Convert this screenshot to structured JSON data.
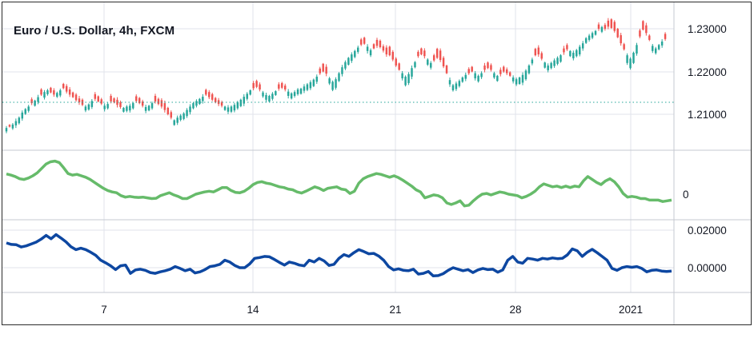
{
  "header": {
    "title": "Euro / U.S. Dollar, 4h, FXCM"
  },
  "colors": {
    "up": "#26a69a",
    "down": "#ef5350",
    "oscillator_line": "#66bb6a",
    "momentum_line": "#0d47a1",
    "grid": "#e0e3eb",
    "last_price_line": "#26a69a"
  },
  "chart_data": [
    {
      "type": "candlestick",
      "title": "Euro / U.S. Dollar, 4h, FXCM",
      "y_ticks": [
        "1.23000",
        "1.22000",
        "1.21000"
      ],
      "ylim": [
        1.202,
        1.233
      ],
      "x_ticks": [
        "7",
        "14",
        "21",
        "28",
        "2021"
      ],
      "reference_level": 1.2128,
      "close": [
        1.2068,
        1.2071,
        1.2076,
        1.2084,
        1.2092,
        1.2104,
        1.2112,
        1.2118,
        1.2126,
        1.2132,
        1.214,
        1.2146,
        1.2152,
        1.2156,
        1.2151,
        1.2146,
        1.215,
        1.2156,
        1.2161,
        1.2153,
        1.2146,
        1.214,
        1.2133,
        1.2128,
        1.2122,
        1.2118,
        1.2123,
        1.2131,
        1.2136,
        1.213,
        1.2125,
        1.212,
        1.2124,
        1.213,
        1.2128,
        1.2122,
        1.2117,
        1.2115,
        1.2118,
        1.212,
        1.2126,
        1.2131,
        1.2126,
        1.212,
        1.2117,
        1.212,
        1.2126,
        1.213,
        1.2124,
        1.2118,
        1.211,
        1.21,
        1.2092,
        1.2086,
        1.2092,
        1.2097,
        1.2102,
        1.211,
        1.2118,
        1.2126,
        1.2131,
        1.2136,
        1.2141,
        1.2146,
        1.214,
        1.2134,
        1.2128,
        1.2124,
        1.212,
        1.2118,
        1.2116,
        1.2118,
        1.2122,
        1.2128,
        1.2134,
        1.2141,
        1.2148,
        1.2156,
        1.2161,
        1.2164,
        1.2158,
        1.2151,
        1.2145,
        1.2143,
        1.2148,
        1.2154,
        1.216,
        1.2162,
        1.2158,
        1.2153,
        1.2149,
        1.2152,
        1.2158,
        1.216,
        1.2165,
        1.217,
        1.2175,
        1.2181,
        1.2188,
        1.2196,
        1.22,
        1.2195,
        1.2184,
        1.2176,
        1.2182,
        1.2196,
        1.221,
        1.2222,
        1.2232,
        1.224,
        1.2248,
        1.2256,
        1.2263,
        1.2265,
        1.2258,
        1.225,
        1.2254,
        1.226,
        1.2257,
        1.2249,
        1.224,
        1.2238,
        1.2228,
        1.2214,
        1.2204,
        1.2196,
        1.2188,
        1.2194,
        1.2208,
        1.2222,
        1.2236,
        1.224,
        1.2236,
        1.2228,
        1.222,
        1.2226,
        1.2232,
        1.2227,
        1.2212,
        1.2196,
        1.218,
        1.2168,
        1.2172,
        1.2178,
        1.2186,
        1.2192,
        1.2196,
        1.22,
        1.2196,
        1.219,
        1.2196,
        1.2204,
        1.2208,
        1.2204,
        1.2196,
        1.219,
        1.2194,
        1.22,
        1.2196,
        1.219,
        1.2186,
        1.2182,
        1.2186,
        1.2192,
        1.2202,
        1.2214,
        1.2228,
        1.2238,
        1.224,
        1.223,
        1.2221,
        1.2214,
        1.222,
        1.2226,
        1.2232,
        1.2238,
        1.2245,
        1.2252,
        1.2248,
        1.2244,
        1.225,
        1.2258,
        1.2266,
        1.2278,
        1.2284,
        1.229,
        1.2295,
        1.23,
        1.2304,
        1.23,
        1.2305,
        1.2302,
        1.2295,
        1.228,
        1.2266,
        1.2252,
        1.2238,
        1.223,
        1.2244,
        1.2262,
        1.2282,
        1.2298,
        1.229,
        1.2274,
        1.226,
        1.2254,
        1.2262,
        1.227,
        1.2276,
        1.228,
        1.227
      ],
      "delta": [
        0.0008,
        -0.0004,
        0.0009,
        0.001,
        0.0013,
        0.0014,
        0.0011,
        0.001,
        -0.0009,
        0.0012,
        0.0011,
        -0.0012,
        0.0013,
        0.0009,
        -0.0011,
        -0.001,
        0.0009,
        0.0012,
        -0.001,
        -0.0013,
        -0.0012,
        -0.0011,
        -0.0013,
        -0.0009,
        -0.0012,
        0.0009,
        0.0012,
        0.0014,
        -0.0011,
        -0.0012,
        -0.001,
        0.0008,
        0.001,
        -0.0013,
        -0.0009,
        -0.0012,
        -0.0011,
        0.0009,
        0.001,
        0.0011,
        0.0012,
        -0.0011,
        -0.0012,
        -0.001,
        0.0009,
        0.0011,
        0.0012,
        -0.0013,
        -0.0012,
        -0.0015,
        -0.0016,
        -0.0015,
        -0.0013,
        0.0011,
        0.0012,
        0.001,
        0.0013,
        0.0014,
        0.0013,
        0.0012,
        0.0011,
        0.0012,
        0.001,
        -0.0011,
        -0.0012,
        -0.0013,
        -0.001,
        -0.0009,
        -0.0008,
        0.0008,
        0.001,
        0.0012,
        0.0013,
        0.0014,
        0.0015,
        0.0016,
        0.0012,
        0.001,
        -0.0012,
        -0.0014,
        -0.0012,
        0.0009,
        0.0011,
        0.0013,
        0.0012,
        0.0009,
        -0.001,
        -0.0011,
        -0.0009,
        0.001,
        0.0012,
        0.0009,
        0.0011,
        0.0012,
        0.001,
        0.0013,
        0.0014,
        0.0015,
        0.0012,
        -0.0011,
        -0.0018,
        -0.0016,
        0.0012,
        0.0019,
        0.002,
        0.0018,
        0.0016,
        0.0015,
        0.0016,
        0.0015,
        0.0014,
        0.001,
        -0.0012,
        -0.0014,
        0.001,
        0.0012,
        -0.001,
        -0.0014,
        -0.0015,
        -0.001,
        -0.0016,
        -0.002,
        -0.0018,
        -0.0016,
        -0.0015,
        0.0012,
        0.002,
        0.0021,
        0.002,
        0.0012,
        -0.001,
        -0.0014,
        -0.0013,
        0.0012,
        0.0011,
        -0.0012,
        -0.0021,
        -0.0022,
        -0.002,
        -0.0018,
        0.001,
        0.0012,
        0.0013,
        0.0012,
        0.001,
        0.0009,
        -0.001,
        -0.0011,
        0.0012,
        0.0013,
        0.0009,
        -0.001,
        -0.0013,
        -0.0011,
        0.001,
        0.0012,
        -0.001,
        -0.0011,
        -0.0009,
        -0.0008,
        0.0009,
        0.0012,
        0.0015,
        0.0018,
        0.002,
        0.0018,
        0.0009,
        -0.0015,
        -0.0016,
        -0.0013,
        0.0012,
        0.0011,
        0.0012,
        0.0013,
        0.0014,
        0.0015,
        -0.0009,
        -0.001,
        0.0012,
        0.0013,
        0.0014,
        0.0018,
        0.0012,
        0.0011,
        0.001,
        0.0011,
        0.0009,
        -0.001,
        0.0011,
        -0.0009,
        -0.0014,
        -0.002,
        -0.0021,
        -0.002,
        -0.0019,
        -0.0012,
        0.0018,
        0.0022,
        0.0024,
        0.002,
        -0.0014,
        -0.002,
        -0.0018,
        -0.001,
        0.0012,
        0.0011,
        0.001,
        0.0009,
        -0.0012
      ],
      "wick": [
        0.0009,
        0.0004,
        0.0007,
        0.0012,
        0.0006,
        0.001,
        0.0005,
        0.0008,
        0.0009,
        0.0004,
        0.0011,
        0.0006,
        0.0009,
        0.0007,
        0.0004,
        0.001,
        0.0006,
        0.0008,
        0.0005,
        0.0009,
        0.0011,
        0.0004,
        0.0007,
        0.0012,
        0.0006,
        0.0008,
        0.0005,
        0.0009,
        0.001,
        0.0004,
        0.0007,
        0.0011,
        0.0006,
        0.0009,
        0.0005,
        0.0012,
        0.0008,
        0.0004,
        0.0007,
        0.001,
        0.0006,
        0.0009,
        0.0005,
        0.0008,
        0.0011,
        0.0004,
        0.0007,
        0.001,
        0.0006,
        0.0009,
        0.0012,
        0.0005,
        0.0008,
        0.0004,
        0.001,
        0.0007,
        0.0006,
        0.0009,
        0.0011,
        0.0005,
        0.0008,
        0.0004,
        0.0012,
        0.0006,
        0.0009,
        0.0007,
        0.0005,
        0.001,
        0.0008,
        0.0004,
        0.0011,
        0.0006,
        0.0009,
        0.0007,
        0.0005,
        0.0012,
        0.0008,
        0.0004,
        0.001,
        0.0006,
        0.0009,
        0.0007,
        0.0011,
        0.0005,
        0.0008,
        0.0004,
        0.001,
        0.0006,
        0.0009,
        0.0012,
        0.0005,
        0.0008,
        0.0007,
        0.0004,
        0.0011,
        0.0006,
        0.0009,
        0.0005,
        0.001,
        0.0008,
        0.0004,
        0.0012,
        0.0007,
        0.0006,
        0.0009,
        0.0005,
        0.0011,
        0.0008,
        0.0004,
        0.001,
        0.0006,
        0.0009,
        0.0007,
        0.0005,
        0.0012,
        0.0008,
        0.0004,
        0.001,
        0.0006,
        0.0009,
        0.0011,
        0.0005,
        0.0008,
        0.0007,
        0.0004,
        0.001,
        0.0006,
        0.0009,
        0.0012,
        0.0005,
        0.0008,
        0.0004,
        0.0011,
        0.0006,
        0.0009,
        0.0007,
        0.0005,
        0.001,
        0.0008,
        0.0004,
        0.0012,
        0.0006,
        0.0009,
        0.0007,
        0.0005,
        0.0011,
        0.0008,
        0.0004,
        0.001,
        0.0006,
        0.0009,
        0.0012,
        0.0005,
        0.0008,
        0.0007,
        0.0004,
        0.0011,
        0.0006,
        0.0009,
        0.0005,
        0.001,
        0.0008,
        0.0004,
        0.0012,
        0.0007,
        0.0006,
        0.0009,
        0.0005,
        0.0011,
        0.0008,
        0.0004,
        0.001,
        0.0006,
        0.0009,
        0.0007,
        0.0005,
        0.0012,
        0.0008,
        0.0004,
        0.001,
        0.0006,
        0.0009,
        0.0011,
        0.0005,
        0.0008,
        0.0007,
        0.0004,
        0.001,
        0.0006,
        0.0009,
        0.0012,
        0.0005,
        0.0008,
        0.0004,
        0.0011,
        0.0006,
        0.0009,
        0.0007,
        0.0005,
        0.001,
        0.0008,
        0.0004,
        0.0012,
        0.0006,
        0.0009,
        0.0007,
        0.0005,
        0.0011,
        0.0008,
        0.0004,
        0.001
      ]
    },
    {
      "type": "line",
      "series": [
        {
          "values": [
            0.55,
            0.52,
            0.48,
            0.42,
            0.4,
            0.44,
            0.5,
            0.58,
            0.7,
            0.82,
            0.88,
            0.9,
            0.86,
            0.72,
            0.56,
            0.52,
            0.54,
            0.5,
            0.46,
            0.4,
            0.32,
            0.24,
            0.16,
            0.1,
            0.06,
            0.04,
            -0.04,
            -0.08,
            -0.06,
            -0.08,
            -0.09,
            -0.08,
            -0.1,
            -0.12,
            -0.11,
            -0.04,
            0.0,
            0.04,
            -0.02,
            -0.06,
            -0.12,
            -0.12,
            -0.06,
            0.0,
            0.03,
            0.06,
            0.08,
            0.06,
            0.12,
            0.18,
            0.18,
            0.1,
            0.05,
            0.04,
            0.08,
            0.16,
            0.26,
            0.32,
            0.34,
            0.3,
            0.28,
            0.24,
            0.2,
            0.18,
            0.14,
            0.12,
            0.06,
            0.03,
            0.08,
            0.14,
            0.2,
            0.16,
            0.1,
            0.16,
            0.18,
            0.2,
            0.14,
            0.12,
            0.02,
            0.08,
            0.3,
            0.42,
            0.48,
            0.52,
            0.56,
            0.54,
            0.5,
            0.46,
            0.5,
            0.45,
            0.38,
            0.3,
            0.22,
            0.12,
            0.06,
            -0.1,
            -0.06,
            -0.02,
            -0.04,
            -0.1,
            -0.24,
            -0.28,
            -0.24,
            -0.18,
            -0.32,
            -0.3,
            -0.18,
            -0.08,
            0.0,
            0.02,
            -0.02,
            0.02,
            0.06,
            0.04,
            0.0,
            -0.02,
            -0.04,
            -0.1,
            -0.06,
            0.0,
            0.08,
            0.2,
            0.28,
            0.24,
            0.2,
            0.22,
            0.18,
            0.22,
            0.18,
            0.22,
            0.2,
            0.36,
            0.48,
            0.4,
            0.32,
            0.26,
            0.36,
            0.42,
            0.34,
            0.2,
            0.02,
            -0.08,
            -0.06,
            -0.08,
            -0.12,
            -0.12,
            -0.16,
            -0.16,
            -0.16,
            -0.2,
            -0.18,
            -0.16
          ]
        }
      ]
    },
    {
      "type": "line",
      "y_ticks": [
        "0.02000",
        "0.00000"
      ],
      "ylim": [
        -0.0125,
        0.024
      ],
      "series": [
        {
          "values": [
            0.0132,
            0.0124,
            0.0122,
            0.011,
            0.0116,
            0.0126,
            0.0136,
            0.0152,
            0.0172,
            0.0154,
            0.0176,
            0.0158,
            0.0138,
            0.0112,
            0.0096,
            0.0104,
            0.0096,
            0.0082,
            0.0066,
            0.004,
            0.0026,
            0.001,
            -0.001,
            0.001,
            0.0014,
            -0.003,
            -0.0012,
            -0.0008,
            -0.0014,
            -0.0026,
            -0.003,
            -0.0022,
            -0.0016,
            -0.0008,
            0.0006,
            -0.0004,
            -0.0016,
            -0.0008,
            -0.0028,
            -0.0022,
            -0.001,
            0.0006,
            0.001,
            0.0018,
            0.004,
            0.003,
            0.0012,
            0.0,
            0.0,
            0.002,
            0.005,
            0.0054,
            0.006,
            0.0058,
            0.0044,
            0.0028,
            0.0014,
            0.003,
            0.0024,
            0.0014,
            0.001,
            0.004,
            0.003,
            0.005,
            0.0036,
            0.0012,
            0.0018,
            0.005,
            0.007,
            0.006,
            0.008,
            0.0096,
            0.0086,
            0.0074,
            0.0076,
            0.0062,
            0.004,
            0.0006,
            -0.0012,
            -0.0006,
            -0.0014,
            -0.0016,
            -0.0008,
            -0.0034,
            -0.003,
            -0.002,
            -0.0044,
            -0.0042,
            -0.0032,
            -0.0014,
            0.0,
            -0.0008,
            -0.0016,
            -0.001,
            -0.0026,
            -0.0012,
            -0.0004,
            -0.001,
            -0.0008,
            -0.0024,
            -0.0012,
            0.004,
            0.006,
            0.003,
            0.0024,
            0.005,
            0.0046,
            0.004,
            0.005,
            0.0046,
            0.0052,
            0.0048,
            0.005,
            0.0068,
            0.01,
            0.009,
            0.006,
            0.0082,
            0.0098,
            0.008,
            0.006,
            0.004,
            -0.0004,
            -0.0014,
            0.0,
            0.0006,
            0.0002,
            0.0006,
            -0.0004,
            -0.0022,
            -0.0014,
            -0.0012,
            -0.0018,
            -0.002,
            -0.0018
          ]
        }
      ]
    }
  ]
}
